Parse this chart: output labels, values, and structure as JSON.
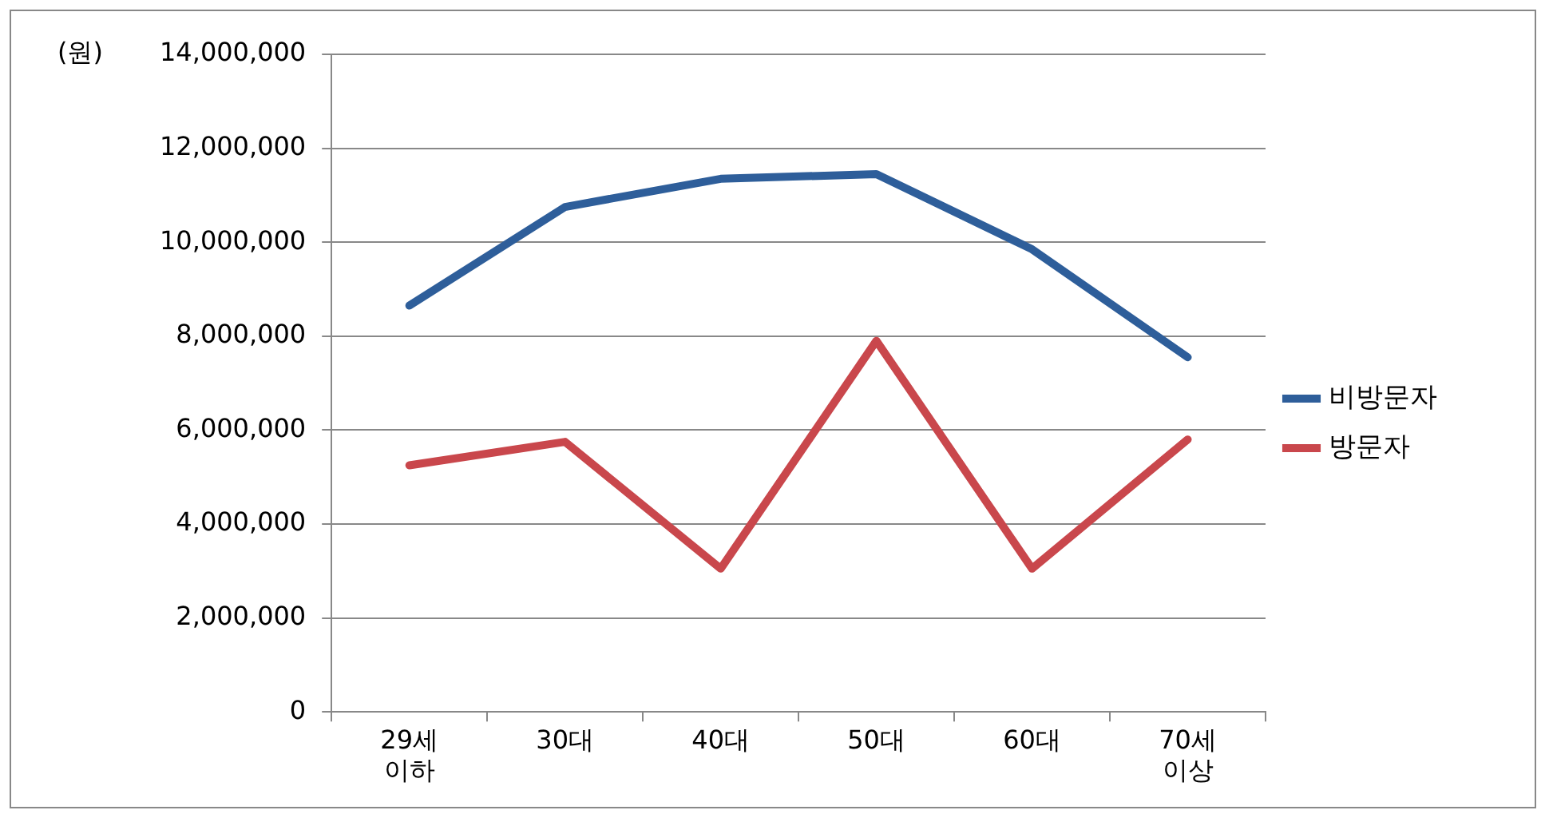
{
  "chart_data": {
    "type": "line",
    "ylabel": "(원)",
    "categories": [
      "29세 이하",
      "30대",
      "40대",
      "50대",
      "60대",
      "70세 이상"
    ],
    "series": [
      {
        "name": "비방문자",
        "color": "#2e5e9a",
        "values": [
          8650000,
          10750000,
          11350000,
          11450000,
          9850000,
          7550000
        ]
      },
      {
        "name": "방문자",
        "color": "#c9474c",
        "values": [
          5250000,
          5750000,
          3050000,
          7900000,
          3050000,
          5800000
        ]
      }
    ],
    "ylim": [
      0,
      14000000
    ],
    "yticks": [
      {
        "value": 0,
        "label": "0"
      },
      {
        "value": 2000000,
        "label": "2,000,000"
      },
      {
        "value": 4000000,
        "label": "4,000,000"
      },
      {
        "value": 6000000,
        "label": "6,000,000"
      },
      {
        "value": 8000000,
        "label": "8,000,000"
      },
      {
        "value": 10000000,
        "label": "10,000,000"
      },
      {
        "value": 12000000,
        "label": "12,000,000"
      },
      {
        "value": 14000000,
        "label": "14,000,000"
      }
    ],
    "grid": "y",
    "legend": "right",
    "marker": "none",
    "line_style": "solid"
  }
}
